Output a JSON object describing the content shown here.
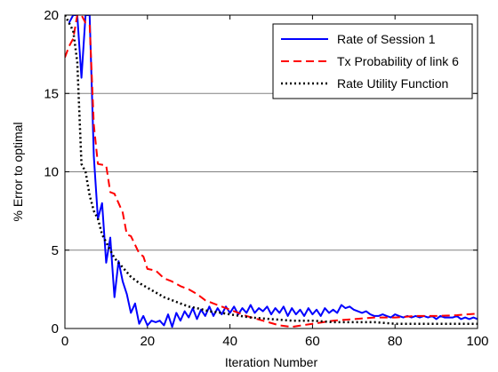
{
  "chart_data": {
    "type": "line",
    "title": "",
    "xlabel": "Iteration Number",
    "ylabel": "% Error to optimal",
    "xlim": [
      0,
      100
    ],
    "ylim": [
      0,
      20
    ],
    "xticks": [
      0,
      20,
      40,
      60,
      80,
      100
    ],
    "yticks": [
      0,
      5,
      10,
      15,
      20
    ],
    "grid": "y-only",
    "legend_position": "top-right",
    "series": [
      {
        "name": "Rate of Session 1",
        "color": "#0000ff",
        "style": "solid",
        "x": [
          1,
          2,
          3,
          4,
          5,
          6,
          7,
          8,
          9,
          10,
          11,
          12,
          13,
          14,
          15,
          16,
          17,
          18,
          19,
          20,
          21,
          22,
          23,
          24,
          25,
          26,
          27,
          28,
          29,
          30,
          31,
          32,
          33,
          34,
          35,
          36,
          37,
          38,
          39,
          40,
          41,
          42,
          43,
          44,
          45,
          46,
          47,
          48,
          49,
          50,
          51,
          52,
          53,
          54,
          55,
          56,
          57,
          58,
          59,
          60,
          61,
          62,
          63,
          64,
          65,
          66,
          67,
          68,
          69,
          70,
          71,
          72,
          73,
          74,
          75,
          76,
          77,
          78,
          79,
          80,
          81,
          82,
          83,
          84,
          85,
          86,
          87,
          88,
          89,
          90,
          91,
          92,
          93,
          94,
          95,
          96,
          97,
          98,
          99,
          100
        ],
        "values": [
          19.5,
          20,
          20,
          16,
          20,
          20,
          11,
          7,
          8,
          4.2,
          5.8,
          2,
          4.3,
          3,
          2.2,
          1,
          1.6,
          0.3,
          0.8,
          0.2,
          0.5,
          0.4,
          0.5,
          0.2,
          0.9,
          0.1,
          1,
          0.5,
          1.1,
          0.7,
          1.3,
          0.6,
          1.2,
          0.8,
          1.4,
          0.8,
          1.3,
          0.9,
          1.4,
          1.0,
          1.4,
          0.9,
          1.3,
          1.0,
          1.5,
          1.0,
          1.3,
          1.1,
          1.4,
          0.9,
          1.3,
          1.0,
          1.4,
          0.8,
          1.3,
          0.9,
          1.2,
          0.8,
          1.3,
          0.9,
          1.2,
          0.8,
          1.3,
          1.0,
          1.2,
          1.0,
          1.5,
          1.3,
          1.4,
          1.2,
          1.1,
          1.0,
          1.1,
          0.9,
          0.8,
          0.8,
          0.9,
          0.8,
          0.7,
          0.9,
          0.8,
          0.7,
          0.8,
          0.7,
          0.8,
          0.7,
          0.8,
          0.7,
          0.8,
          0.6,
          0.8,
          0.7,
          0.7,
          0.7,
          0.8,
          0.6,
          0.7,
          0.6,
          0.7,
          0.6
        ]
      },
      {
        "name": "Tx Probability of link 6",
        "color": "#ff0000",
        "style": "dashed",
        "x": [
          0,
          1,
          2,
          3,
          4,
          5,
          6,
          7,
          8,
          10,
          11,
          12,
          14,
          15,
          16,
          18,
          19,
          20,
          22,
          24,
          26,
          28,
          30,
          32,
          34,
          36,
          38,
          40,
          44,
          48,
          52,
          55,
          60,
          65,
          70,
          75,
          80,
          85,
          90,
          95,
          100
        ],
        "values": [
          17.3,
          18,
          18.5,
          20,
          20,
          19.5,
          19.4,
          13,
          10.5,
          10.4,
          8.7,
          8.6,
          7.4,
          6.0,
          5.9,
          4.8,
          4.6,
          3.8,
          3.7,
          3.2,
          3.0,
          2.7,
          2.5,
          2.2,
          1.8,
          1.6,
          1.4,
          1.2,
          0.8,
          0.5,
          0.2,
          0.1,
          0.3,
          0.5,
          0.6,
          0.7,
          0.7,
          0.8,
          0.8,
          0.85,
          0.95
        ]
      },
      {
        "name": "Rate Utility Function",
        "color": "#000000",
        "style": "dotted",
        "x": [
          0,
          1,
          2,
          3,
          4,
          5,
          6,
          7,
          8,
          9,
          10,
          11,
          12,
          14,
          16,
          18,
          20,
          22,
          24,
          26,
          28,
          30,
          32,
          35,
          38,
          40,
          45,
          50,
          55,
          60,
          65,
          70,
          75,
          80,
          85,
          90,
          95,
          100
        ],
        "values": [
          20,
          19.5,
          19,
          17,
          10.5,
          10,
          8.5,
          7.5,
          7,
          6,
          5.5,
          5,
          4.5,
          3.9,
          3.3,
          2.9,
          2.6,
          2.3,
          2.0,
          1.8,
          1.6,
          1.4,
          1.3,
          1.1,
          1.0,
          0.9,
          0.7,
          0.6,
          0.5,
          0.5,
          0.4,
          0.4,
          0.4,
          0.3,
          0.3,
          0.3,
          0.3,
          0.3
        ]
      }
    ]
  }
}
